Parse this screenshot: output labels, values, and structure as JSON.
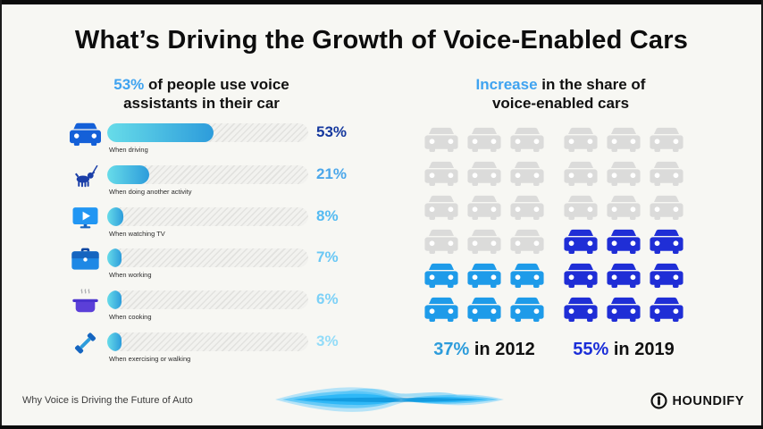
{
  "title": "What’s Driving the Growth of Voice-Enabled Cars",
  "usage_chart": {
    "heading_highlight": "53%",
    "heading_rest": " of people use voice assistants in their car",
    "rows": [
      {
        "icon": "car-front-icon",
        "label": "When driving",
        "value": "53%",
        "pct": 53,
        "value_color": "#16399E"
      },
      {
        "icon": "dog-walking-icon",
        "label": "When doing another activity",
        "value": "21%",
        "pct": 21,
        "value_color": "#4BA7EA"
      },
      {
        "icon": "tv-play-icon",
        "label": "When watching TV",
        "value": "8%",
        "pct": 8,
        "value_color": "#55BBF2"
      },
      {
        "icon": "briefcase-icon",
        "label": "When working",
        "value": "7%",
        "pct": 7,
        "value_color": "#6AC8F5"
      },
      {
        "icon": "cooking-pot-icon",
        "label": "When cooking",
        "value": "6%",
        "pct": 6,
        "value_color": "#7DD1F7"
      },
      {
        "icon": "dumbbell-icon",
        "label": "When exercising or walking",
        "value": "3%",
        "pct": 3,
        "value_color": "#93DCF8"
      }
    ]
  },
  "share_chart": {
    "heading_highlight": "Increase",
    "heading_rest": " in the share of voice-enabled cars",
    "icon": "car-front-icon",
    "car_gray": "#DBDBDA",
    "groups": [
      {
        "value": "37%",
        "suffix": " in 2012",
        "total": 18,
        "highlighted": 6,
        "cols": 3,
        "highlight_color": "#1E9BE9",
        "value_color": "#2D9CDB"
      },
      {
        "value": "55%",
        "suffix": " in 2019",
        "total": 18,
        "highlighted": 9,
        "cols": 3,
        "highlight_color": "#1F2ED6",
        "value_color": "#1B2ED8"
      }
    ]
  },
  "footer": {
    "caption": "Why Voice is Driving the Future of Auto",
    "brand": "HOUNDIFY"
  },
  "colors": {
    "background": "#F7F7F3",
    "accent": "#3FA3F0",
    "bar_gradient_start": "#67DCE9",
    "bar_gradient_end": "#2D9CDB"
  },
  "chart_data": [
    {
      "type": "bar",
      "orientation": "horizontal",
      "title": "53% of people use voice assistants in their car",
      "categories": [
        "When driving",
        "When doing another activity",
        "When watching TV",
        "When working",
        "When cooking",
        "When exercising or walking"
      ],
      "values": [
        53,
        21,
        8,
        7,
        6,
        3
      ],
      "data_labels": [
        "53%",
        "21%",
        "8%",
        "7%",
        "6%",
        "3%"
      ],
      "unit": "%",
      "xlim": [
        0,
        100
      ],
      "grid": false,
      "legend": false
    },
    {
      "type": "bar",
      "style": "pictogram-grid",
      "title": "Increase in the share of voice-enabled cars",
      "categories": [
        "2012",
        "2019"
      ],
      "values": [
        37,
        55
      ],
      "unit": "%",
      "icon": "car",
      "icons_total_per_group": 18,
      "icons_highlighted": [
        6,
        9
      ],
      "labels": [
        "37% in 2012",
        "55% in 2019"
      ],
      "legend": false
    }
  ]
}
